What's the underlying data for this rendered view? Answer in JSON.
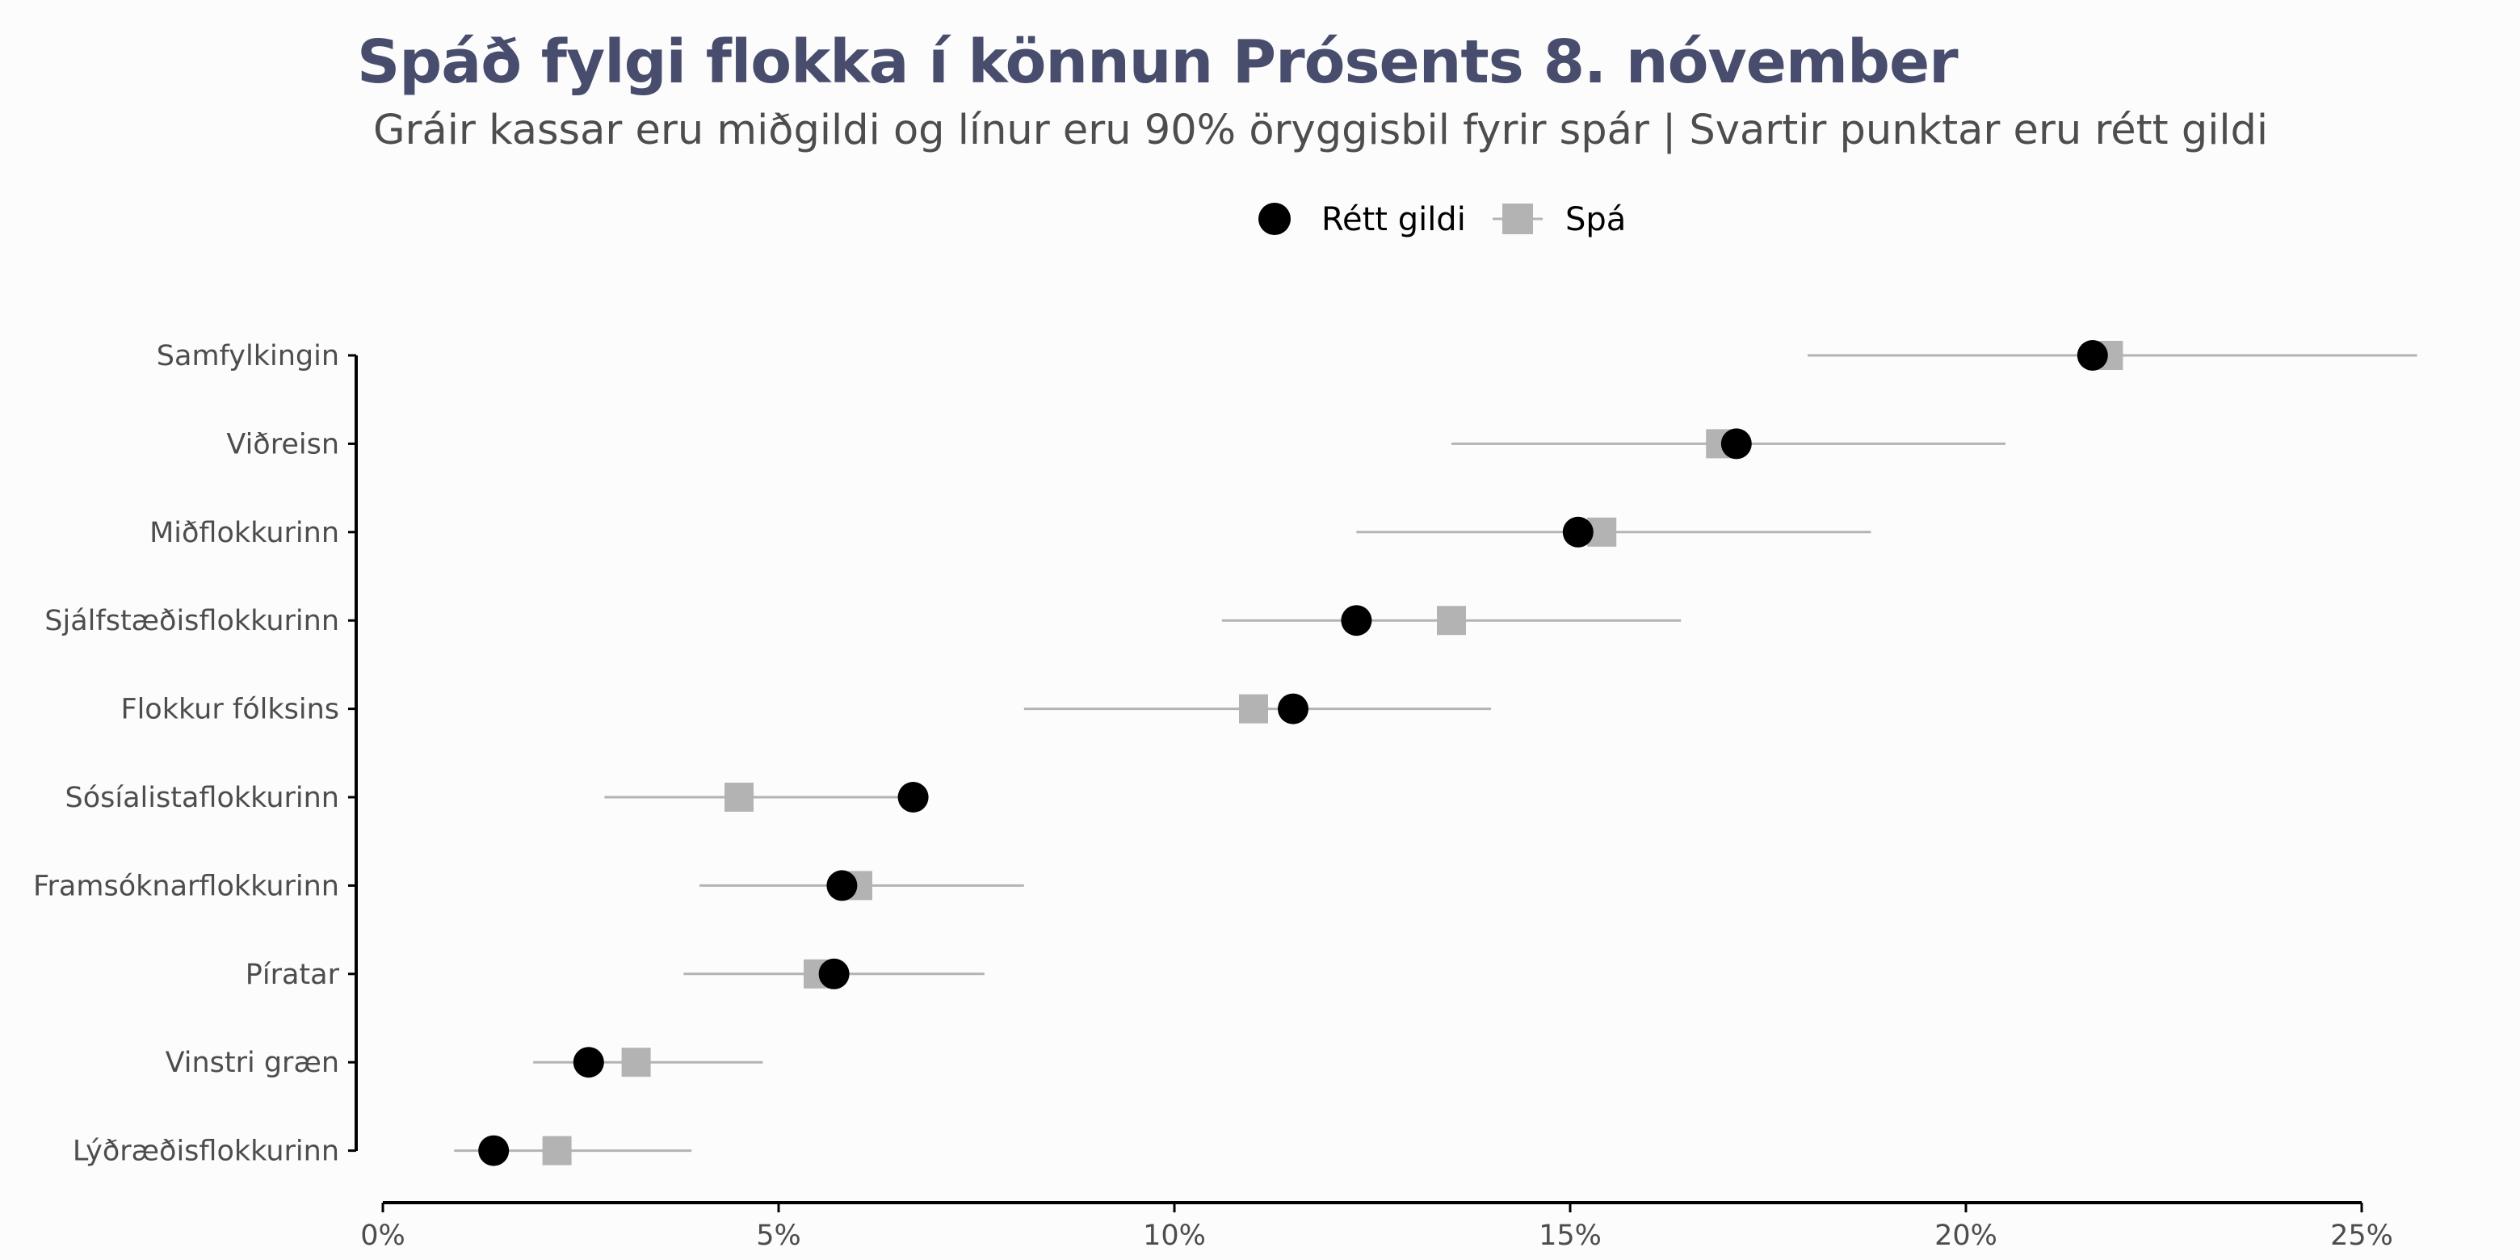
{
  "chart_data": {
    "type": "dot-interval",
    "title": "Spáð fylgi flokka í könnun Prósents 8. nóvember",
    "subtitle": "Gráir kassar eru miðgildi og línur eru 90% öryggisbil fyrir spár | Svartir punktar eru rétt gildi",
    "legend": {
      "position": "top",
      "actual_label": "Rétt gildi",
      "forecast_label": "Spá"
    },
    "xlim": [
      0,
      25
    ],
    "xticks": [
      0,
      5,
      10,
      15,
      20,
      25
    ],
    "xtick_labels": [
      "0%",
      "5%",
      "10%",
      "15%",
      "20%",
      "25%"
    ],
    "categories": [
      "Samfylkingin",
      "Viðreisn",
      "Miðflokkurinn",
      "Sjálfstæðisflokkurinn",
      "Flokkur fólksins",
      "Sósíalistaflokkurinn",
      "Framsóknarflokkurinn",
      "Píratar",
      "Vinstri græn",
      "Lýðræðisflokkurinn"
    ],
    "series": [
      {
        "name": "Spá",
        "median": [
          21.8,
          16.9,
          15.4,
          13.5,
          11.0,
          4.5,
          6.0,
          5.5,
          3.2,
          2.2
        ],
        "lower": [
          18.0,
          13.5,
          12.3,
          10.6,
          8.1,
          2.8,
          4.0,
          3.8,
          1.9,
          0.9
        ],
        "upper": [
          25.7,
          20.5,
          18.8,
          16.4,
          14.0,
          6.7,
          8.1,
          7.6,
          4.8,
          3.9
        ]
      },
      {
        "name": "Rétt gildi",
        "values": [
          21.6,
          17.1,
          15.1,
          12.3,
          11.5,
          6.7,
          5.8,
          5.7,
          2.6,
          1.4
        ]
      }
    ],
    "colors": {
      "actual": "#000000",
      "forecast": "#b3b3b3",
      "title": "#484d6d",
      "text": "#4d4d4d"
    }
  }
}
